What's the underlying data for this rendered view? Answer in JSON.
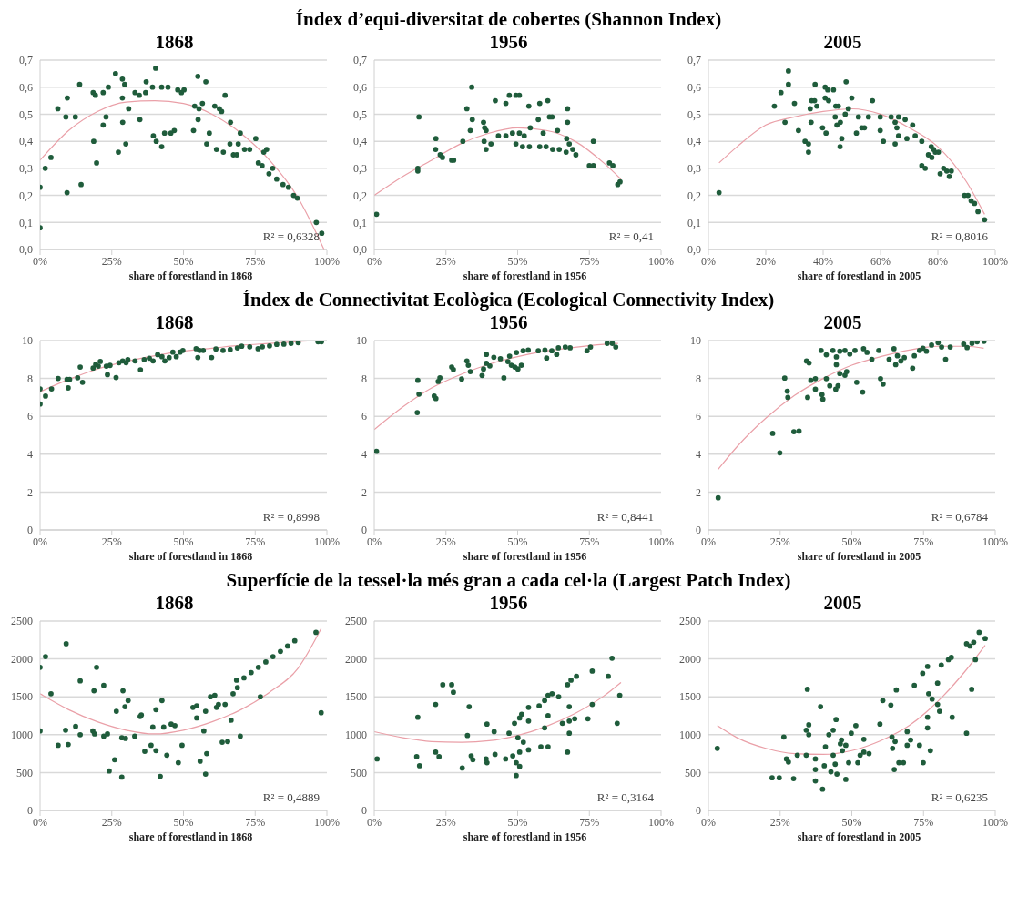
{
  "chart_data": [
    {
      "type": "scatter",
      "title": "1868",
      "xlabel": "share of forestland in 1868",
      "xlim": [
        0,
        100
      ],
      "xticks": [
        {
          "value": 0,
          "label": "0%"
        },
        {
          "value": 25,
          "label": "25%"
        },
        {
          "value": 50,
          "label": "50%"
        },
        {
          "value": 75,
          "label": "75%"
        },
        {
          "value": 100,
          "label": "100%"
        }
      ],
      "ylim": [
        0,
        0.7
      ],
      "yticks": [
        {
          "value": 0,
          "label": "0,0"
        },
        {
          "value": 0.1,
          "label": "0,1"
        },
        {
          "value": 0.2,
          "label": "0,2"
        },
        {
          "value": 0.3,
          "label": "0,3"
        },
        {
          "value": 0.4,
          "label": "0,4"
        },
        {
          "value": 0.5,
          "label": "0,5"
        },
        {
          "value": 0.6,
          "label": "0,6"
        },
        {
          "value": 0.7,
          "label": "0,7"
        }
      ],
      "grid": "y",
      "annotations": [
        "R² = 0,6328"
      ],
      "series": [
        {
          "marker": "circle",
          "color": "#1f5c3b",
          "x": [
            0,
            0,
            1.8,
            3.8,
            6.2,
            9.5,
            9,
            12.3,
            13.8,
            9.4,
            14.3,
            18.7,
            19.7,
            18.5,
            19.3,
            22,
            23.8,
            23,
            22,
            26.3,
            27.3,
            28.7,
            29.5,
            28.7,
            28.8,
            29.9,
            30.9,
            33.1,
            34.6,
            34.8,
            36.8,
            37,
            39.2,
            40.3,
            39.5,
            40.5,
            42.4,
            42.4,
            43.4,
            44.6,
            45.6,
            46.8,
            48,
            49.3,
            50.2,
            53.5,
            53.9,
            55,
            55.1,
            55.4,
            56.6,
            57.8,
            58.1,
            59,
            60.9,
            61.5,
            62.5,
            63.3,
            64.5,
            63.9,
            66.4,
            66.2,
            67.4,
            68.6,
            69.8,
            69.1,
            71.3,
            73.1,
            75.2,
            76.1,
            77.4,
            78,
            79,
            81.1,
            79.8,
            82.5,
            84.7,
            86.6,
            88.4,
            89.7,
            96.3,
            98.2
          ],
          "values": [
            0.08,
            0.23,
            0.3,
            0.34,
            0.52,
            0.56,
            0.49,
            0.49,
            0.61,
            0.21,
            0.24,
            0.4,
            0.32,
            0.58,
            0.57,
            0.58,
            0.6,
            0.49,
            0.46,
            0.65,
            0.36,
            0.63,
            0.61,
            0.56,
            0.47,
            0.39,
            0.52,
            0.58,
            0.57,
            0.48,
            0.58,
            0.62,
            0.6,
            0.67,
            0.42,
            0.4,
            0.38,
            0.6,
            0.43,
            0.6,
            0.43,
            0.44,
            0.59,
            0.58,
            0.59,
            0.44,
            0.53,
            0.64,
            0.48,
            0.52,
            0.54,
            0.62,
            0.39,
            0.43,
            0.53,
            0.37,
            0.52,
            0.51,
            0.57,
            0.36,
            0.47,
            0.39,
            0.35,
            0.35,
            0.43,
            0.39,
            0.37,
            0.37,
            0.41,
            0.32,
            0.31,
            0.36,
            0.37,
            0.3,
            0.28,
            0.26,
            0.24,
            0.23,
            0.2,
            0.19,
            0.1,
            0.06
          ]
        },
        {
          "type": "line",
          "color": "#eaa0a8",
          "x": [
            0,
            10,
            20,
            30,
            40,
            50,
            60,
            70,
            80,
            90,
            99
          ],
          "values": [
            0.33,
            0.44,
            0.51,
            0.545,
            0.55,
            0.54,
            0.5,
            0.43,
            0.33,
            0.19,
            0.0
          ]
        }
      ]
    },
    {
      "type": "scatter",
      "title": "Índex d’equi-diversitat de cobertes (Shannon Index)",
      "subtitle": "1956",
      "xlabel": "share of forestland in 1956",
      "xlim": [
        0,
        100
      ],
      "xticks": [
        {
          "value": 0,
          "label": "0%"
        },
        {
          "value": 25,
          "label": "25%"
        },
        {
          "value": 50,
          "label": "50%"
        },
        {
          "value": 75,
          "label": "75%"
        },
        {
          "value": 100,
          "label": "100%"
        }
      ],
      "ylim": [
        0,
        0.7
      ],
      "yticks": [
        {
          "value": 0,
          "label": "0,0"
        },
        {
          "value": 0.1,
          "label": "0,1"
        },
        {
          "value": 0.2,
          "label": "0,2"
        },
        {
          "value": 0.3,
          "label": "0,3"
        },
        {
          "value": 0.4,
          "label": "0,4"
        },
        {
          "value": 0.5,
          "label": "0,5"
        },
        {
          "value": 0.6,
          "label": "0,6"
        },
        {
          "value": 0.7,
          "label": "0,7"
        }
      ],
      "grid": "y",
      "annotations": [
        "R² = 0,41"
      ],
      "series": [
        {
          "marker": "circle",
          "color": "#1f5c3b",
          "x": [
            0.8,
            15.2,
            15.2,
            15.6,
            21.5,
            21.4,
            23,
            23.8,
            27,
            27.7,
            30.9,
            32.3,
            34,
            33.5,
            34.2,
            38.1,
            38.5,
            39,
            38.3,
            39,
            40.7,
            42.2,
            43.3,
            45.9,
            47.1,
            49.4,
            50.6,
            45.9,
            48.2,
            50.6,
            52.3,
            49.4,
            51.7,
            54.1,
            53.9,
            54.4,
            57.7,
            57.2,
            58.9,
            57.7,
            60.5,
            61.1,
            62,
            59.9,
            62.2,
            64.5,
            63.9,
            67.4,
            67.4,
            67.1,
            68,
            69.2,
            70.3,
            66.9,
            76.4,
            75,
            76.4,
            82,
            83.2,
            84.9,
            85.7
          ],
          "values": [
            0.13,
            0.3,
            0.29,
            0.49,
            0.41,
            0.37,
            0.35,
            0.34,
            0.33,
            0.33,
            0.4,
            0.52,
            0.6,
            0.44,
            0.48,
            0.47,
            0.45,
            0.44,
            0.4,
            0.37,
            0.39,
            0.55,
            0.42,
            0.54,
            0.57,
            0.57,
            0.57,
            0.42,
            0.43,
            0.43,
            0.42,
            0.39,
            0.38,
            0.38,
            0.53,
            0.45,
            0.54,
            0.48,
            0.43,
            0.38,
            0.55,
            0.49,
            0.49,
            0.38,
            0.37,
            0.37,
            0.44,
            0.52,
            0.47,
            0.41,
            0.39,
            0.37,
            0.35,
            0.36,
            0.4,
            0.31,
            0.31,
            0.32,
            0.31,
            0.24,
            0.25
          ]
        },
        {
          "type": "line",
          "color": "#eaa0a8",
          "x": [
            0,
            10,
            20,
            30,
            40,
            50,
            60,
            70,
            80,
            86
          ],
          "values": [
            0.2,
            0.27,
            0.33,
            0.39,
            0.43,
            0.45,
            0.44,
            0.4,
            0.32,
            0.26
          ]
        }
      ]
    },
    {
      "type": "scatter",
      "title": "2005",
      "xlabel": "share of forestland in 2005",
      "xlim": [
        0,
        100
      ],
      "xticks": [
        {
          "value": 0,
          "label": "0%"
        },
        {
          "value": 20,
          "label": "20%"
        },
        {
          "value": 40,
          "label": "40%"
        },
        {
          "value": 60,
          "label": "60%"
        },
        {
          "value": 80,
          "label": "80%"
        },
        {
          "value": 100,
          "label": "100%"
        }
      ],
      "ylim": [
        0,
        0.7
      ],
      "yticks": [
        {
          "value": 0,
          "label": "0,0"
        },
        {
          "value": 0.1,
          "label": "0,1"
        },
        {
          "value": 0.2,
          "label": "0,2"
        },
        {
          "value": 0.3,
          "label": "0,3"
        },
        {
          "value": 0.4,
          "label": "0,4"
        },
        {
          "value": 0.5,
          "label": "0,5"
        },
        {
          "value": 0.6,
          "label": "0,6"
        },
        {
          "value": 0.7,
          "label": "0,7"
        }
      ],
      "grid": "y",
      "annotations": [
        "R² = 0,8016"
      ],
      "series": [
        {
          "marker": "circle",
          "color": "#1f5c3b",
          "x": [
            3.7,
            23,
            25.3,
            26.7,
            27.9,
            27.9,
            30,
            31.4,
            33.7,
            34.9,
            34.9,
            35.5,
            36,
            37,
            37.8,
            35.8,
            37.2,
            39.8,
            41,
            40.7,
            41.6,
            40.7,
            41.9,
            43.6,
            44.4,
            45.3,
            44.2,
            44.8,
            46,
            45.9,
            46.5,
            47.7,
            48,
            48.8,
            50,
            51.6,
            52.3,
            53.5,
            54.4,
            55.8,
            57.2,
            59.9,
            59.9,
            61,
            63.7,
            65.1,
            66.3,
            65.7,
            65.1,
            66.3,
            68.6,
            69.2,
            71.2,
            72.1,
            74.4,
            74.4,
            75.6,
            77.7,
            78.5,
            76.7,
            77.9,
            79.1,
            80.2,
            80.8,
            82,
            83.1,
            84,
            84.7,
            89.3,
            90.5,
            91.6,
            92.8,
            94,
            96.3
          ],
          "values": [
            0.21,
            0.53,
            0.58,
            0.47,
            0.66,
            0.61,
            0.54,
            0.44,
            0.4,
            0.39,
            0.36,
            0.52,
            0.55,
            0.55,
            0.53,
            0.47,
            0.61,
            0.45,
            0.43,
            0.6,
            0.59,
            0.56,
            0.55,
            0.59,
            0.53,
            0.53,
            0.49,
            0.46,
            0.47,
            0.38,
            0.41,
            0.5,
            0.62,
            0.52,
            0.56,
            0.43,
            0.49,
            0.45,
            0.45,
            0.49,
            0.55,
            0.49,
            0.44,
            0.4,
            0.49,
            0.47,
            0.49,
            0.45,
            0.39,
            0.42,
            0.48,
            0.41,
            0.46,
            0.42,
            0.4,
            0.31,
            0.3,
            0.38,
            0.37,
            0.35,
            0.34,
            0.36,
            0.36,
            0.28,
            0.3,
            0.29,
            0.27,
            0.29,
            0.2,
            0.2,
            0.18,
            0.17,
            0.14,
            0.11
          ]
        },
        {
          "type": "line",
          "color": "#eaa0a8",
          "x": [
            3.7,
            10,
            20,
            30,
            40,
            50,
            60,
            70,
            80,
            90,
            96.3
          ],
          "values": [
            0.32,
            0.38,
            0.46,
            0.49,
            0.51,
            0.52,
            0.5,
            0.45,
            0.38,
            0.25,
            0.13
          ]
        }
      ]
    },
    {
      "type": "scatter",
      "title": "1868",
      "xlabel": "share of forestland in 1868",
      "xlim": [
        0,
        100
      ],
      "xticks": [
        {
          "value": 0,
          "label": "0%"
        },
        {
          "value": 25,
          "label": "25%"
        },
        {
          "value": 50,
          "label": "50%"
        },
        {
          "value": 75,
          "label": "75%"
        },
        {
          "value": 100,
          "label": "100%"
        }
      ],
      "ylim": [
        0,
        10
      ],
      "yticks": [
        0,
        2,
        4,
        6,
        8,
        10
      ],
      "grid": "y",
      "annotations": [
        "R² = 0,8998"
      ],
      "series": [
        {
          "marker": "circle",
          "color": "#1f5c3b",
          "x": [
            0,
            0,
            1.9,
            4,
            6.3,
            9.4,
            10.3,
            9.8,
            13.1,
            14,
            14.8,
            18.5,
            19.4,
            21,
            20.3,
            23.1,
            24.4,
            23.5,
            26.5,
            27.5,
            28.8,
            30,
            30.6,
            33.1,
            35,
            36.3,
            38.1,
            39.4,
            41,
            42.5,
            43.5,
            45,
            46.3,
            48.8,
            49.8,
            47.5,
            54.4,
            55.6,
            55,
            56.9,
            59.8,
            61.3,
            63.8,
            66.3,
            68.8,
            70.3,
            73.1,
            76,
            77.5,
            80,
            82.5,
            85,
            87.5,
            90,
            96.9,
            98.1
          ],
          "values": [
            6.65,
            7.45,
            7.07,
            7.45,
            8.0,
            7.95,
            7.95,
            7.5,
            8.04,
            8.6,
            7.8,
            8.55,
            8.74,
            8.9,
            8.65,
            8.65,
            8.69,
            8.2,
            8.05,
            8.83,
            8.93,
            8.83,
            9.0,
            8.93,
            8.46,
            9.0,
            9.07,
            8.93,
            9.26,
            9.15,
            8.93,
            9.1,
            9.39,
            9.39,
            9.48,
            9.15,
            9.57,
            9.48,
            9.11,
            9.48,
            9.11,
            9.56,
            9.48,
            9.52,
            9.61,
            9.7,
            9.67,
            9.57,
            9.67,
            9.72,
            9.8,
            9.81,
            9.85,
            9.89,
            9.94,
            9.94
          ]
        },
        {
          "type": "line",
          "color": "#eaa0a8",
          "x": [
            0,
            10,
            20,
            30,
            40,
            50,
            60,
            70,
            80,
            90,
            98
          ],
          "values": [
            7.3,
            7.95,
            8.5,
            8.9,
            9.2,
            9.45,
            9.6,
            9.75,
            9.85,
            9.95,
            10.0
          ]
        }
      ]
    },
    {
      "type": "scatter",
      "title": "Índex de Connectivitat Ecològica (Ecological Connectivity Index)",
      "subtitle": "1956",
      "xlabel": "share of forestland in 1956",
      "xlim": [
        0,
        100
      ],
      "xticks": [
        {
          "value": 0,
          "label": "0%"
        },
        {
          "value": 25,
          "label": "25%"
        },
        {
          "value": 50,
          "label": "50%"
        },
        {
          "value": 75,
          "label": "75%"
        },
        {
          "value": 100,
          "label": "100%"
        }
      ],
      "ylim": [
        0,
        10
      ],
      "yticks": [
        0,
        2,
        4,
        6,
        8,
        10
      ],
      "grid": "y",
      "annotations": [
        "R² = 0,8441"
      ],
      "series": [
        {
          "marker": "circle",
          "color": "#1f5c3b",
          "x": [
            0.8,
            15,
            15.2,
            15.6,
            20.9,
            21.5,
            22.3,
            22.9,
            27,
            27.6,
            30.5,
            32.3,
            32.8,
            33.5,
            37.6,
            38.1,
            39.1,
            39.1,
            40.3,
            41.7,
            44,
            45.2,
            46.6,
            47.8,
            49,
            50.1,
            51.3,
            47.2,
            49.6,
            51.9,
            53.7,
            57.2,
            59.5,
            61.9,
            64.2,
            66.6,
            68.3,
            60.1,
            63.6,
            74.2,
            75.4,
            81.2,
            83,
            84.2
          ],
          "values": [
            4.15,
            6.2,
            7.9,
            7.17,
            7.07,
            6.94,
            7.84,
            8.03,
            8.6,
            8.47,
            7.97,
            8.93,
            8.7,
            8.36,
            8.16,
            8.5,
            9.27,
            8.8,
            8.66,
            9.12,
            9.04,
            8.03,
            8.89,
            8.7,
            8.6,
            8.5,
            8.7,
            9.18,
            9.37,
            9.46,
            9.5,
            9.46,
            9.5,
            9.46,
            9.62,
            9.66,
            9.62,
            9.08,
            9.27,
            9.46,
            9.66,
            9.85,
            9.85,
            9.66
          ]
        },
        {
          "type": "line",
          "color": "#eaa0a8",
          "x": [
            0,
            10,
            20,
            30,
            40,
            50,
            60,
            70,
            80,
            85
          ],
          "values": [
            5.3,
            6.5,
            7.5,
            8.2,
            8.75,
            9.15,
            9.45,
            9.65,
            9.8,
            9.85
          ]
        }
      ]
    },
    {
      "type": "scatter",
      "title": "2005",
      "xlabel": "share of forestland in 2005",
      "xlim": [
        0,
        100
      ],
      "xticks": [
        {
          "value": 0,
          "label": "0%"
        },
        {
          "value": 25,
          "label": "25%"
        },
        {
          "value": 50,
          "label": "50%"
        },
        {
          "value": 75,
          "label": "75%"
        },
        {
          "value": 100,
          "label": "100%"
        }
      ],
      "ylim": [
        0,
        10
      ],
      "yticks": [
        0,
        2,
        4,
        6,
        8,
        10
      ],
      "grid": "y",
      "annotations": [
        "R² = 0,6784"
      ],
      "series": [
        {
          "marker": "circle",
          "color": "#1f5c3b",
          "x": [
            3.4,
            22.4,
            24.9,
            26.6,
            27.5,
            27.7,
            29.8,
            31.6,
            34.2,
            35.1,
            34.6,
            35.7,
            37.3,
            37.3,
            39.3,
            41.1,
            39.9,
            39.6,
            41.1,
            42.3,
            43.4,
            44.6,
            45.8,
            47.6,
            44.6,
            44.4,
            45.2,
            45.8,
            47.6,
            48.2,
            49.3,
            51.1,
            54.1,
            55.3,
            51.7,
            53.8,
            57,
            59.4,
            60,
            60.9,
            63,
            64.7,
            65.3,
            65.9,
            67.1,
            68.3,
            71.2,
            71.8,
            73.6,
            74.8,
            76,
            77.8,
            80.1,
            81.3,
            82.7,
            84.3,
            89,
            90.2,
            91.9,
            93.7,
            96.1
          ],
          "values": [
            1.7,
            5.1,
            4.07,
            8.02,
            7.33,
            7.0,
            5.19,
            5.22,
            8.92,
            8.82,
            7.0,
            7.9,
            7.99,
            7.43,
            9.48,
            9.25,
            6.9,
            7.15,
            7.99,
            7.61,
            9.48,
            9.14,
            9.44,
            9.48,
            8.73,
            7.43,
            7.61,
            8.26,
            8.17,
            8.36,
            9.29,
            9.48,
            9.57,
            9.38,
            7.8,
            7.28,
            9.01,
            9.48,
            7.99,
            7.7,
            9.01,
            9.57,
            8.73,
            9.2,
            8.92,
            9.1,
            8.54,
            9.2,
            9.48,
            9.6,
            9.44,
            9.76,
            9.89,
            9.66,
            9.01,
            9.66,
            9.81,
            9.63,
            9.85,
            9.94,
            9.96
          ]
        },
        {
          "type": "line",
          "color": "#eaa0a8",
          "x": [
            3.4,
            10,
            20,
            30,
            40,
            50,
            60,
            70,
            80,
            90,
            96
          ],
          "values": [
            3.2,
            4.4,
            5.9,
            7.1,
            8.0,
            8.7,
            9.15,
            9.5,
            9.7,
            9.7,
            9.6
          ]
        }
      ]
    },
    {
      "type": "scatter",
      "title": "1868",
      "xlabel": "share of forestland in 1868",
      "xlim": [
        0,
        100
      ],
      "xticks": [
        {
          "value": 0,
          "label": "0%"
        },
        {
          "value": 25,
          "label": "25%"
        },
        {
          "value": 50,
          "label": "50%"
        },
        {
          "value": 75,
          "label": "75%"
        },
        {
          "value": 100,
          "label": "100%"
        }
      ],
      "ylim": [
        0,
        2500
      ],
      "yticks": [
        0,
        500,
        1000,
        1500,
        2000,
        2500
      ],
      "grid": "y",
      "annotations": [
        "R² = 0,4889"
      ],
      "series": [
        {
          "marker": "circle",
          "color": "#1f5c3b",
          "x": [
            0,
            1.9,
            0,
            3.8,
            6.3,
            9.1,
            8.9,
            9.8,
            12.4,
            14,
            14,
            18.4,
            19,
            18.8,
            19.7,
            22.2,
            22.2,
            23.5,
            24.1,
            26,
            26.6,
            28.5,
            28.5,
            29.8,
            28.9,
            29.6,
            30.7,
            33,
            34.9,
            35.3,
            36.5,
            38.7,
            39.3,
            40.4,
            40.4,
            41.9,
            42.5,
            43.1,
            44.2,
            45.7,
            47,
            48.2,
            49.5,
            53.3,
            54.6,
            54.6,
            55.8,
            57.1,
            57.7,
            57.7,
            58.1,
            59.4,
            60.9,
            61.5,
            62.2,
            63.5,
            65.4,
            64.5,
            66.6,
            67.3,
            68.8,
            68.5,
            69.8,
            71.1,
            73.6,
            76.1,
            78.7,
            81.2,
            83.8,
            86.3,
            88.8,
            76.8,
            96.2,
            98
          ],
          "values": [
            1890,
            2030,
            1050,
            1540,
            860,
            2200,
            1060,
            870,
            1110,
            1000,
            1710,
            1050,
            1010,
            1580,
            1890,
            1650,
            980,
            1010,
            520,
            670,
            1310,
            440,
            960,
            950,
            1580,
            1370,
            1450,
            980,
            1240,
            1260,
            780,
            860,
            1100,
            790,
            1330,
            450,
            1450,
            1100,
            730,
            1140,
            1120,
            630,
            860,
            1360,
            1380,
            1220,
            650,
            1050,
            1310,
            480,
            750,
            1500,
            1520,
            1360,
            1400,
            900,
            910,
            1400,
            1190,
            1540,
            1620,
            1720,
            980,
            1750,
            1820,
            1890,
            1960,
            2030,
            2100,
            2170,
            2240,
            1500,
            2350,
            1290
          ]
        },
        {
          "type": "line",
          "color": "#eaa0a8",
          "x": [
            0,
            10,
            20,
            30,
            40,
            50,
            60,
            70,
            80,
            90,
            98
          ],
          "values": [
            1540,
            1330,
            1170,
            1060,
            1010,
            1060,
            1170,
            1330,
            1560,
            1880,
            2400
          ]
        }
      ]
    },
    {
      "type": "scatter",
      "title": "Superfície de la tessel·la més gran a cada cel·la (Largest Patch Index)",
      "subtitle": "1956",
      "xlabel": "share of forestland in 1956",
      "xlim": [
        0,
        100
      ],
      "xticks": [
        {
          "value": 0,
          "label": "0%"
        },
        {
          "value": 25,
          "label": "25%"
        },
        {
          "value": 50,
          "label": "50%"
        },
        {
          "value": 75,
          "label": "75%"
        },
        {
          "value": 100,
          "label": "100%"
        }
      ],
      "ylim": [
        0,
        2500
      ],
      "yticks": [
        0,
        500,
        1000,
        1500,
        2000,
        2500
      ],
      "grid": "y",
      "annotations": [
        "R² = 0,3164"
      ],
      "series": [
        {
          "marker": "circle",
          "color": "#1f5c3b",
          "x": [
            1,
            15.2,
            14.8,
            15.8,
            21.4,
            21.4,
            22.6,
            23.9,
            27,
            27.6,
            30.7,
            32.5,
            33.1,
            33.8,
            34.4,
            39.3,
            39,
            39.3,
            41.8,
            42.1,
            45.8,
            48.3,
            50.7,
            53.8,
            49.5,
            50.7,
            49.5,
            47,
            48.9,
            51.4,
            50.7,
            50.1,
            52,
            53.8,
            53.8,
            57.5,
            59.4,
            60.6,
            62,
            64.3,
            58.1,
            60.6,
            59.4,
            60.6,
            65.6,
            68,
            69.9,
            68,
            67.4,
            68.6,
            70.5,
            68,
            67.4,
            74.5,
            76,
            76,
            81.6,
            82.9,
            84.7,
            85.6
          ],
          "values": [
            680,
            1230,
            710,
            590,
            1400,
            770,
            710,
            1660,
            1660,
            1560,
            560,
            990,
            1370,
            720,
            670,
            1140,
            680,
            630,
            1040,
            740,
            680,
            720,
            770,
            800,
            630,
            580,
            460,
            1020,
            1150,
            1270,
            1220,
            960,
            900,
            1180,
            1360,
            1380,
            1450,
            1520,
            1540,
            1500,
            840,
            840,
            1090,
            1250,
            1150,
            1180,
            1210,
            1370,
            1660,
            1720,
            1770,
            1020,
            770,
            1210,
            1840,
            1400,
            1770,
            2010,
            1150,
            1520
          ]
        },
        {
          "type": "line",
          "color": "#eaa0a8",
          "x": [
            0,
            10,
            20,
            30,
            40,
            50,
            60,
            70,
            80,
            86
          ],
          "values": [
            1040,
            960,
            910,
            900,
            920,
            990,
            1110,
            1280,
            1510,
            1690
          ]
        }
      ]
    },
    {
      "type": "scatter",
      "title": "2005",
      "xlabel": "share of forestland in 2005",
      "xlim": [
        0,
        100
      ],
      "xticks": [
        {
          "value": 0,
          "label": "0%"
        },
        {
          "value": 25,
          "label": "25%"
        },
        {
          "value": 50,
          "label": "50%"
        },
        {
          "value": 75,
          "label": "75%"
        },
        {
          "value": 100,
          "label": "100%"
        }
      ],
      "ylim": [
        0,
        2500
      ],
      "yticks": [
        0,
        500,
        1000,
        1500,
        2000,
        2500
      ],
      "grid": "y",
      "annotations": [
        "R² = 0,6235"
      ],
      "series": [
        {
          "marker": "circle",
          "color": "#1f5c3b",
          "x": [
            3.1,
            22.2,
            24.7,
            26.3,
            27.2,
            27.9,
            29.7,
            31,
            34.5,
            34.1,
            35,
            34.1,
            35,
            37.3,
            37.3,
            37.3,
            39.1,
            39.8,
            40.4,
            40.8,
            42,
            42.7,
            43.5,
            44.5,
            43.5,
            44.2,
            44.8,
            46,
            46.7,
            47.9,
            46.4,
            47.9,
            48.9,
            49.8,
            51.4,
            52.1,
            52.9,
            54.2,
            56,
            54.2,
            59.8,
            60.8,
            63.6,
            64,
            65.1,
            64.2,
            65.5,
            64.8,
            66.4,
            68,
            69.3,
            69.3,
            70.5,
            71.8,
            73.6,
            74.9,
            74.7,
            76.4,
            76.4,
            76.4,
            76.8,
            77.4,
            78,
            79.9,
            80.6,
            79.9,
            81.2,
            83.7,
            84.7,
            85,
            90,
            91.8,
            90,
            91.2,
            92.5,
            93.1,
            94.4,
            96.5
          ],
          "values": [
            820,
            430,
            430,
            970,
            680,
            640,
            420,
            730,
            1600,
            1060,
            1000,
            730,
            1130,
            680,
            540,
            390,
            1370,
            280,
            590,
            840,
            1000,
            510,
            1060,
            1200,
            730,
            610,
            480,
            880,
            790,
            860,
            930,
            410,
            630,
            1020,
            1120,
            630,
            730,
            770,
            750,
            940,
            1140,
            1450,
            1390,
            970,
            910,
            820,
            1590,
            540,
            630,
            630,
            1040,
            860,
            930,
            1650,
            860,
            630,
            1810,
            1900,
            1230,
            1090,
            1540,
            790,
            1470,
            1400,
            1310,
            1680,
            1920,
            1990,
            2020,
            1230,
            1020,
            1600,
            2200,
            2170,
            2220,
            1990,
            2350,
            2270
          ]
        },
        {
          "type": "line",
          "color": "#eaa0a8",
          "x": [
            3.1,
            10,
            20,
            30,
            40,
            50,
            60,
            70,
            80,
            90,
            96.5
          ],
          "values": [
            1120,
            960,
            820,
            750,
            740,
            790,
            920,
            1120,
            1440,
            1860,
            2180
          ]
        }
      ]
    }
  ]
}
